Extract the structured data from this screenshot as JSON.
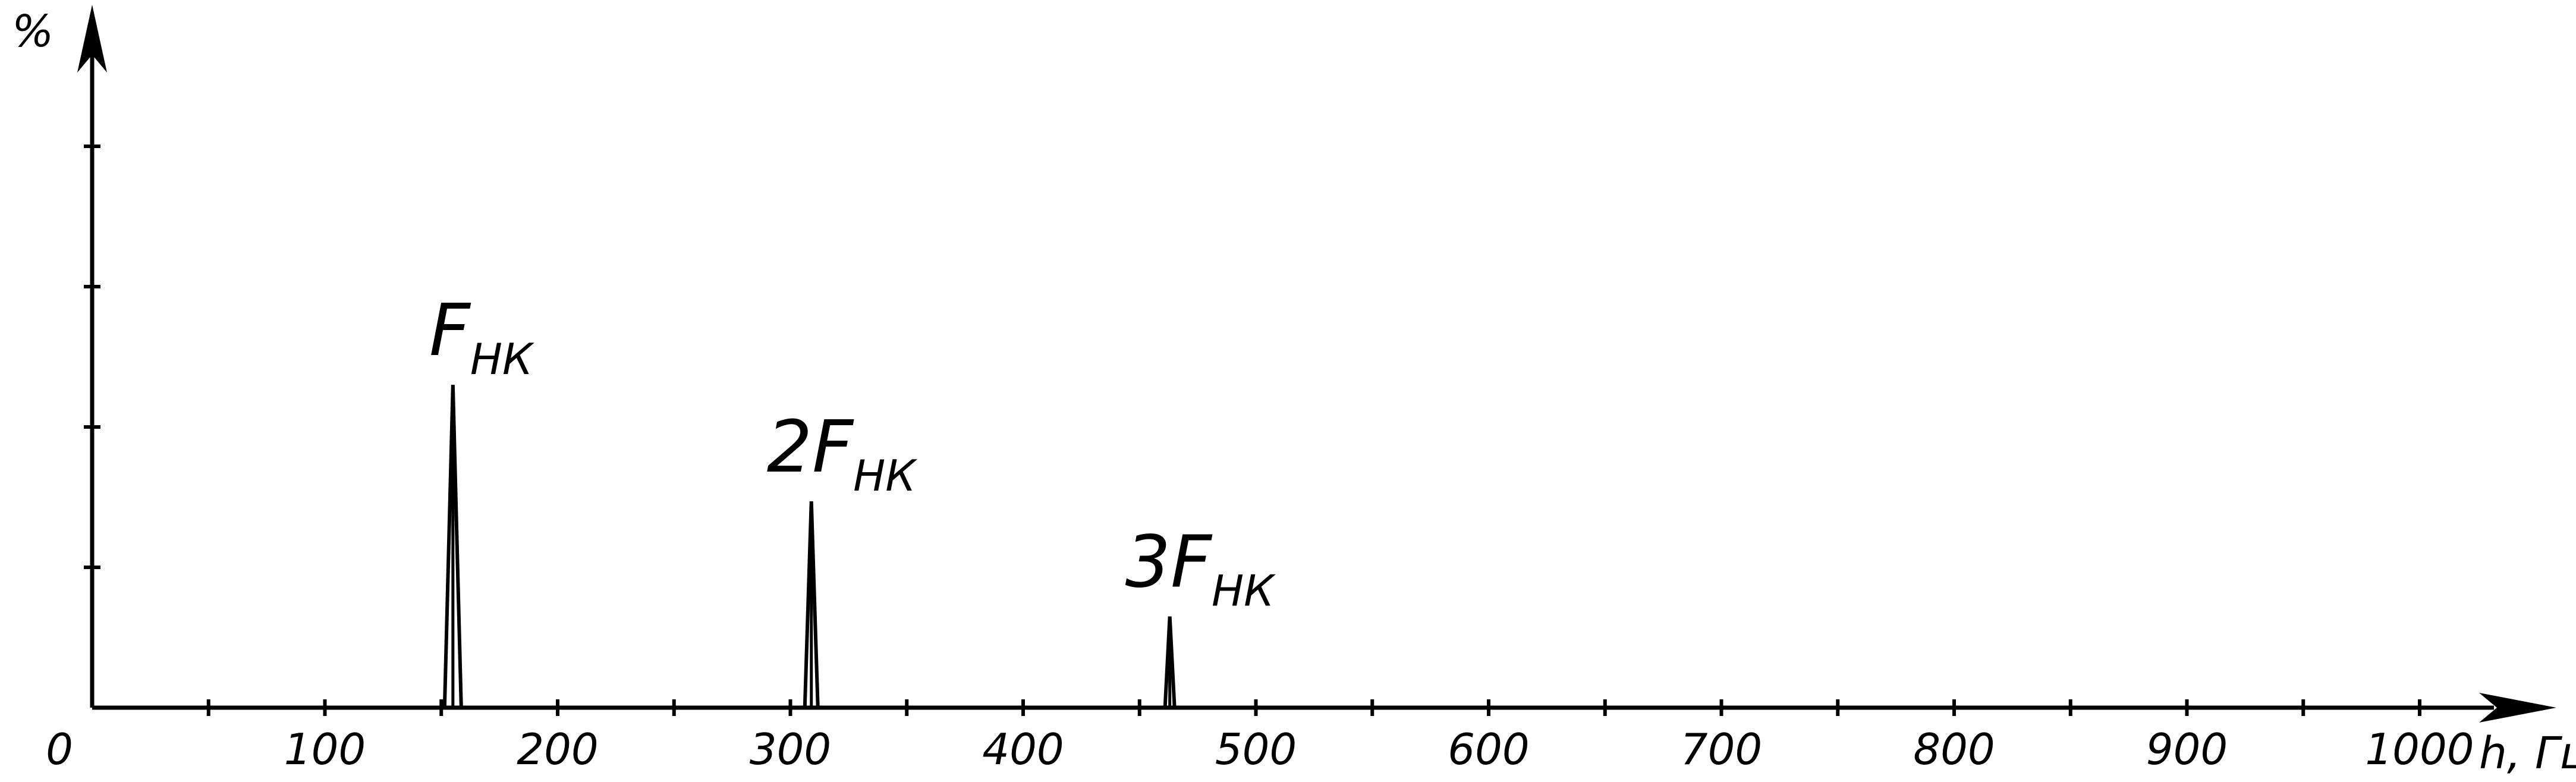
{
  "chart_data": {
    "type": "bar",
    "title": "",
    "ylabel": "%",
    "xlabel": "h, Гц",
    "xlim": [
      0,
      1000
    ],
    "ylim": [
      0,
      5
    ],
    "x_ticks_major": [
      0,
      100,
      200,
      300,
      400,
      500,
      600,
      700,
      800,
      900,
      1000
    ],
    "x_ticks_minor": [
      50,
      150,
      250,
      350,
      450,
      550,
      650,
      750,
      850,
      950
    ],
    "x_tick_labels": [
      "0",
      "100",
      "200",
      "300",
      "400",
      "500",
      "600",
      "700",
      "800",
      "900",
      "1000"
    ],
    "y_ticks": [
      1,
      2,
      3,
      4
    ],
    "grid": false,
    "legend": "none",
    "peaks": [
      {
        "x": 155,
        "value": 2.3,
        "label_main": "F",
        "label_sub": "НК"
      },
      {
        "x": 309,
        "value": 1.47,
        "label_main": "2F",
        "label_sub": "НК"
      },
      {
        "x": 463,
        "value": 0.65,
        "label_main": "3F",
        "label_sub": "НК"
      }
    ]
  },
  "colors": {
    "line": "#000000",
    "background": "#ffffff"
  }
}
